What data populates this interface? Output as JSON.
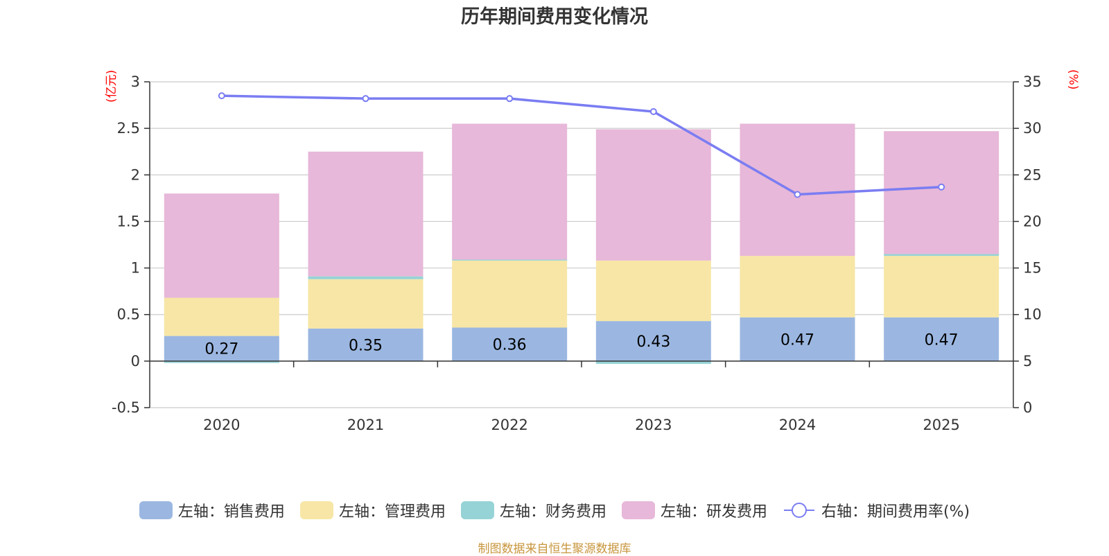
{
  "chart_data": {
    "type": "bar",
    "stacked": true,
    "title": "历年期间费用变化情况",
    "categories": [
      "2020",
      "2021",
      "2022",
      "2023",
      "2024",
      "2025"
    ],
    "y_left": {
      "unit_label": "(亿元)",
      "ylim": [
        -0.5,
        3
      ],
      "ticks": [
        "3",
        "2.5",
        "2",
        "1.5",
        "1",
        "0.5",
        "0",
        "-0.5"
      ],
      "tick_values": [
        3,
        2.5,
        2,
        1.5,
        1,
        0.5,
        0,
        -0.5
      ]
    },
    "y_right": {
      "unit_label": "(%)",
      "ylim": [
        0,
        35
      ],
      "ticks": [
        "35",
        "30",
        "25",
        "20",
        "15",
        "10",
        "5",
        "0"
      ],
      "tick_values": [
        35,
        30,
        25,
        20,
        15,
        10,
        5,
        0
      ]
    },
    "series": [
      {
        "name": "左轴：销售费用",
        "axis": "left",
        "color": "#9bb7e1",
        "values": [
          0.27,
          0.35,
          0.36,
          0.43,
          0.47,
          0.47
        ],
        "labels": [
          "0.27",
          "0.35",
          "0.36",
          "0.43",
          "0.47",
          "0.47"
        ]
      },
      {
        "name": "左轴：管理费用",
        "axis": "left",
        "color": "#f7e6a6",
        "values": [
          0.41,
          0.53,
          0.72,
          0.65,
          0.66,
          0.66
        ]
      },
      {
        "name": "左轴：财务费用",
        "axis": "left",
        "color": "#96d3d6",
        "values": [
          -0.02,
          0.03,
          0.01,
          -0.03,
          0.0,
          0.02
        ]
      },
      {
        "name": "左轴：研发费用",
        "axis": "left",
        "color": "#e7b8d9",
        "values": [
          1.12,
          1.34,
          1.46,
          1.41,
          1.42,
          1.32
        ]
      },
      {
        "name": "右轴：期间费用率(%)",
        "axis": "right",
        "type": "line",
        "color": "#7a7df2",
        "values": [
          33.5,
          33.2,
          33.2,
          31.8,
          22.9,
          23.7
        ]
      }
    ],
    "colors": {
      "unit_label": "#ff0000",
      "axis_text": "#333333",
      "grid": "#cccccc"
    },
    "legend_position": "bottom"
  },
  "source": "制图数据来自恒生聚源数据库"
}
